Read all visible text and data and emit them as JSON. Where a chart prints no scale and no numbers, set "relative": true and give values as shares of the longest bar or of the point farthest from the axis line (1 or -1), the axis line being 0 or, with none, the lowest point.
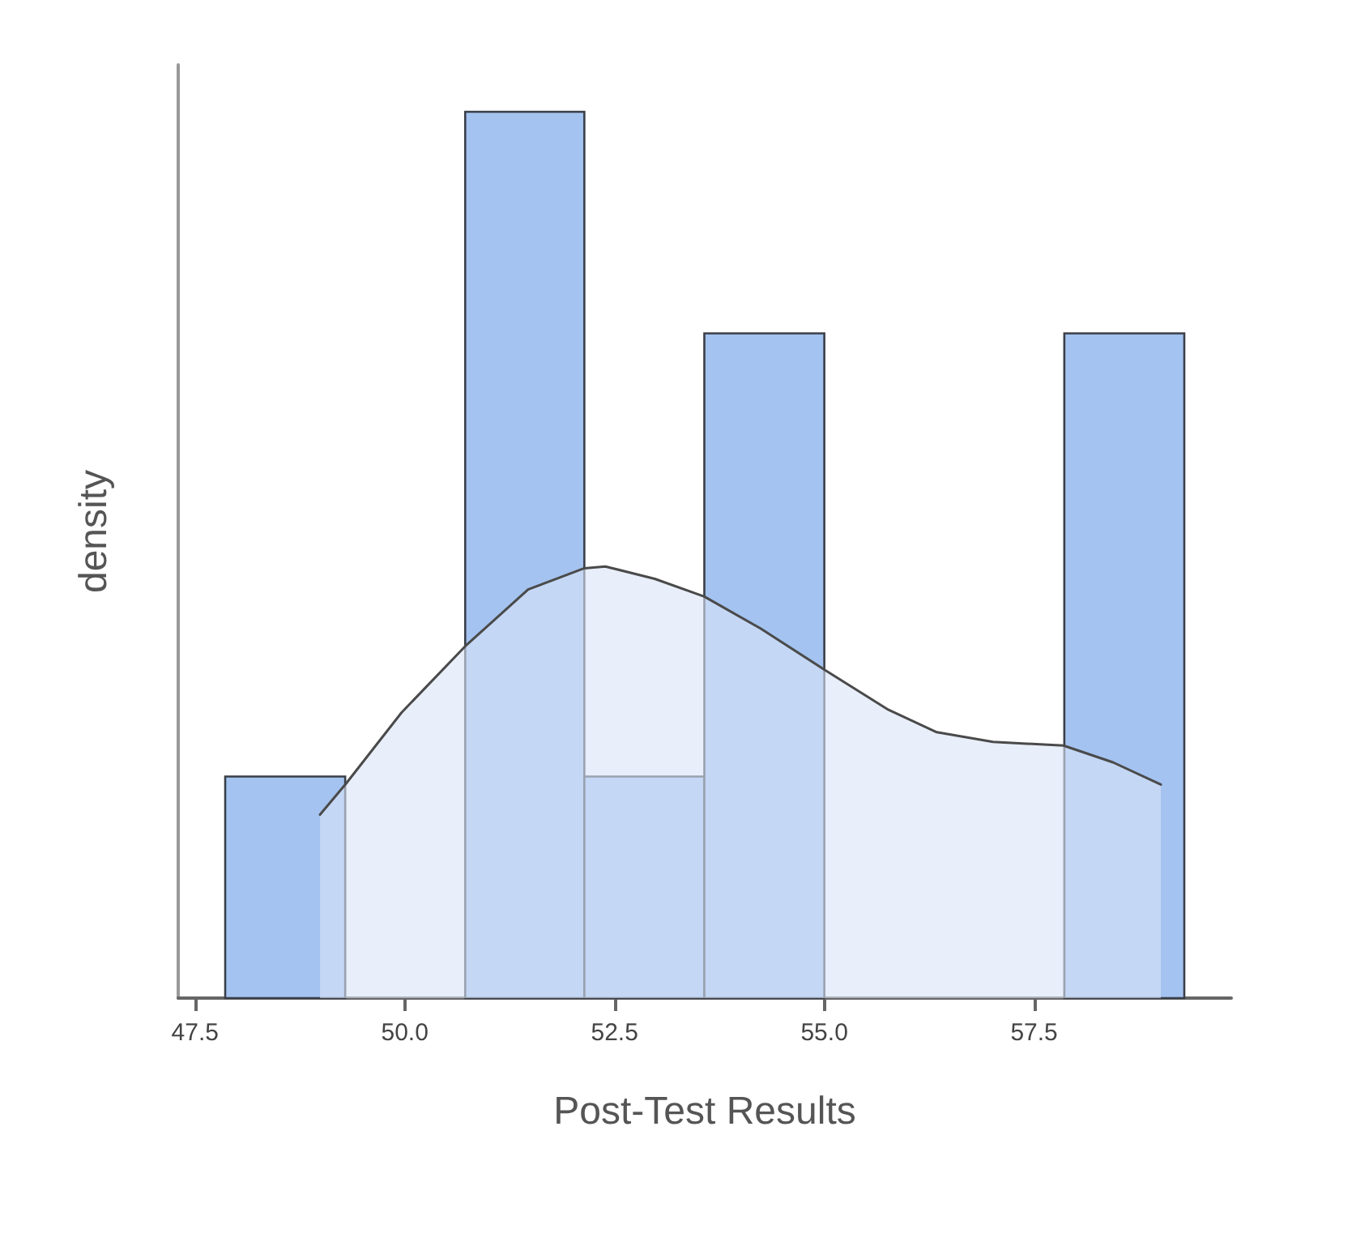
{
  "chart_data": {
    "type": "histogram",
    "xlabel": "Post-Test Results",
    "ylabel": "density",
    "relative": true,
    "bins": [
      47.86,
      49.29,
      50.72,
      52.14,
      53.57,
      55.0,
      57.86,
      59.29
    ],
    "xlim": [
      47.3,
      59.85
    ],
    "xticks": [
      47.5,
      {
        "value": 50,
        "label": "50.0"
      },
      52.5,
      {
        "value": 55,
        "label": "55.0"
      },
      57.5
    ],
    "series": [
      {
        "color": "#a4c3f0",
        "values": [
          0.25,
          0,
          1,
          0.25,
          0.75,
          0,
          0.75
        ]
      },
      {
        "type": "area",
        "color": "#dae5f6",
        "x": [
          48.99,
          49.3,
          49.96,
          50.72,
          51.47,
          52.14,
          52.39,
          52.98,
          53.57,
          54.24,
          55.01,
          55.75,
          56.34,
          57.01,
          57.85,
          58.44,
          59.01
        ],
        "values": [
          0.207,
          0.242,
          0.322,
          0.397,
          0.461,
          0.485,
          0.487,
          0.473,
          0.453,
          0.417,
          0.37,
          0.326,
          0.3,
          0.289,
          0.285,
          0.266,
          0.241
        ]
      }
    ],
    "grid": false
  }
}
